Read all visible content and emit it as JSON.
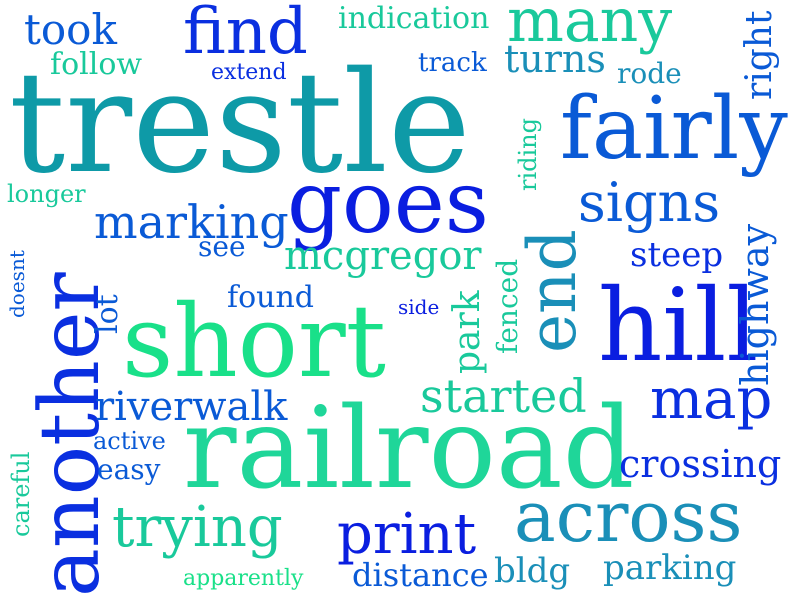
{
  "words": [
    {
      "text": "trestle",
      "color": "#0e9aa7"
    },
    {
      "text": "railroad",
      "color": "#1fd699"
    },
    {
      "text": "short",
      "color": "#19e089"
    },
    {
      "text": "goes",
      "color": "#0a1ee0"
    },
    {
      "text": "another",
      "color": "#0a2fe0"
    },
    {
      "text": "fairly",
      "color": "#0a5ad6"
    },
    {
      "text": "hill",
      "color": "#0a1ee0"
    },
    {
      "text": "end",
      "color": "#1a8fb8"
    },
    {
      "text": "across",
      "color": "#1a8fb8"
    },
    {
      "text": "find",
      "color": "#0a2fe0"
    },
    {
      "text": "many",
      "color": "#19c99b"
    },
    {
      "text": "signs",
      "color": "#0a5ad6"
    },
    {
      "text": "map",
      "color": "#0a2fe0"
    },
    {
      "text": "print",
      "color": "#0a1ee0"
    },
    {
      "text": "trying",
      "color": "#19c99b"
    },
    {
      "text": "marking",
      "color": "#0a5ad6"
    },
    {
      "text": "mcgregor",
      "color": "#19c99b"
    },
    {
      "text": "started",
      "color": "#19c99b"
    },
    {
      "text": "riverwalk",
      "color": "#0a5ad6"
    },
    {
      "text": "crossing",
      "color": "#0a2fe0"
    },
    {
      "text": "took",
      "color": "#0a5ad6"
    },
    {
      "text": "turns",
      "color": "#1a8fb8"
    },
    {
      "text": "highway",
      "color": "#0a5ad6"
    },
    {
      "text": "park",
      "color": "#19c99b"
    },
    {
      "text": "parking",
      "color": "#1a8fb8"
    },
    {
      "text": "distance",
      "color": "#0a5ad6"
    },
    {
      "text": "bldg",
      "color": "#1a8fb8"
    },
    {
      "text": "right",
      "color": "#0a5ad6"
    },
    {
      "text": "steep",
      "color": "#0a2fe0"
    },
    {
      "text": "indication",
      "color": "#19c99b"
    },
    {
      "text": "follow",
      "color": "#19c99b"
    },
    {
      "text": "found",
      "color": "#0a5ad6"
    },
    {
      "text": "lot",
      "color": "#0a5ad6"
    },
    {
      "text": "rode",
      "color": "#1a8fb8"
    },
    {
      "text": "track",
      "color": "#0a5ad6"
    },
    {
      "text": "easy",
      "color": "#0a5ad6"
    },
    {
      "text": "active",
      "color": "#0a5ad6"
    },
    {
      "text": "see",
      "color": "#0a5ad6"
    },
    {
      "text": "fenced",
      "color": "#19c99b"
    },
    {
      "text": "riding",
      "color": "#19c99b"
    },
    {
      "text": "careful",
      "color": "#19c99b"
    },
    {
      "text": "longer",
      "color": "#19c99b"
    },
    {
      "text": "extend",
      "color": "#0a2fe0"
    },
    {
      "text": "side",
      "color": "#0a1ee0"
    },
    {
      "text": "doesnt",
      "color": "#0a5ad6"
    },
    {
      "text": "apparently",
      "color": "#19e089"
    }
  ]
}
